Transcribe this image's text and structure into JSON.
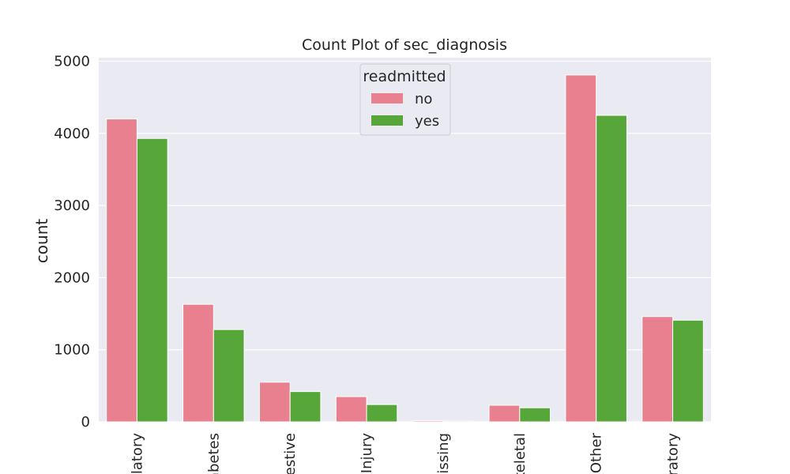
{
  "chart_data": {
    "type": "bar",
    "title": "Count Plot of sec_diagnosis",
    "xlabel": "",
    "ylabel": "count",
    "categories": [
      "Circulatory",
      "Diabetes",
      "Digestive",
      "Injury",
      "Missing",
      "Musculoskeletal",
      "Other",
      "Respiratory"
    ],
    "category_labels_visible": [
      "ulatory",
      "abetes",
      "estive",
      "Injury",
      "issing",
      "keletal",
      "Other",
      "ratory"
    ],
    "series": [
      {
        "name": "no",
        "color": "#e8808f",
        "values": [
          4200,
          1630,
          550,
          350,
          15,
          230,
          4810,
          1460
        ]
      },
      {
        "name": "yes",
        "color": "#56a63a",
        "values": [
          3930,
          1280,
          420,
          240,
          12,
          195,
          4250,
          1410
        ]
      }
    ],
    "ylim": [
      0,
      5050
    ],
    "yticks": [
      0,
      1000,
      2000,
      3000,
      4000,
      5000
    ],
    "legend": {
      "title": "readmitted",
      "position": "top-center"
    },
    "grid": true,
    "background": "#eaeaf2"
  }
}
